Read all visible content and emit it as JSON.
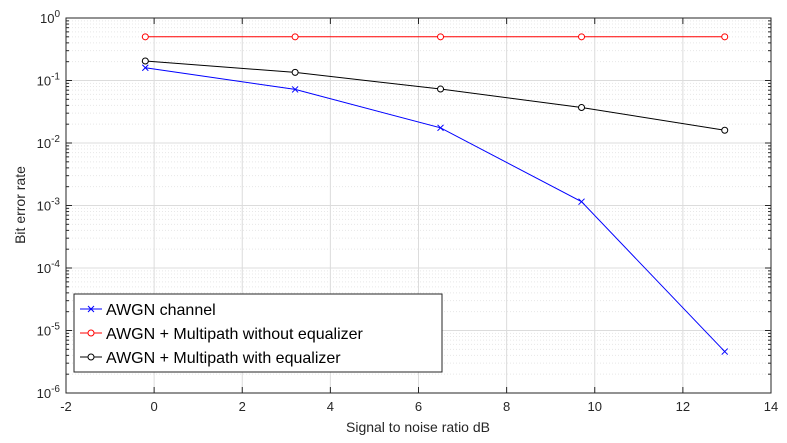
{
  "chart_data": {
    "type": "line",
    "title": "",
    "xlabel": "Signal to noise ratio dB",
    "ylabel": "Bit error rate",
    "xlim": [
      -2,
      14
    ],
    "ylim": [
      1e-06,
      1
    ],
    "yscale": "log",
    "xticks": [
      -2,
      0,
      2,
      4,
      6,
      8,
      10,
      12,
      14
    ],
    "xtick_labels": [
      "-2",
      "0",
      "2",
      "4",
      "6",
      "8",
      "10",
      "12",
      "14"
    ],
    "yticks": [
      {
        "value": 1e-06,
        "base": "10",
        "exp": "-6"
      },
      {
        "value": 1e-05,
        "base": "10",
        "exp": "-5"
      },
      {
        "value": 0.0001,
        "base": "10",
        "exp": "-4"
      },
      {
        "value": 0.001,
        "base": "10",
        "exp": "-3"
      },
      {
        "value": 0.01,
        "base": "10",
        "exp": "-2"
      },
      {
        "value": 0.1,
        "base": "10",
        "exp": "-1"
      },
      {
        "value": 1,
        "base": "10",
        "exp": "0"
      }
    ],
    "grid": true,
    "minor_grid": true,
    "legend_position": "bottom-left",
    "series": [
      {
        "name": "AWGN channel",
        "color": "#0000ff",
        "marker": "x",
        "x": [
          -0.2,
          3.2,
          6.5,
          9.7,
          12.95
        ],
        "y": [
          0.16,
          0.072,
          0.0175,
          0.00115,
          4.6e-06
        ]
      },
      {
        "name": "AWGN + Multipath without equalizer",
        "color": "#ff0000",
        "marker": "o",
        "x": [
          -0.2,
          3.2,
          6.5,
          9.7,
          12.95
        ],
        "y": [
          0.5,
          0.5,
          0.5,
          0.5,
          0.5
        ]
      },
      {
        "name": "AWGN + Multipath with equalizer",
        "color": "#000000",
        "marker": "o",
        "x": [
          -0.2,
          3.2,
          6.5,
          9.7,
          12.95
        ],
        "y": [
          0.205,
          0.135,
          0.073,
          0.037,
          0.016
        ]
      }
    ]
  }
}
